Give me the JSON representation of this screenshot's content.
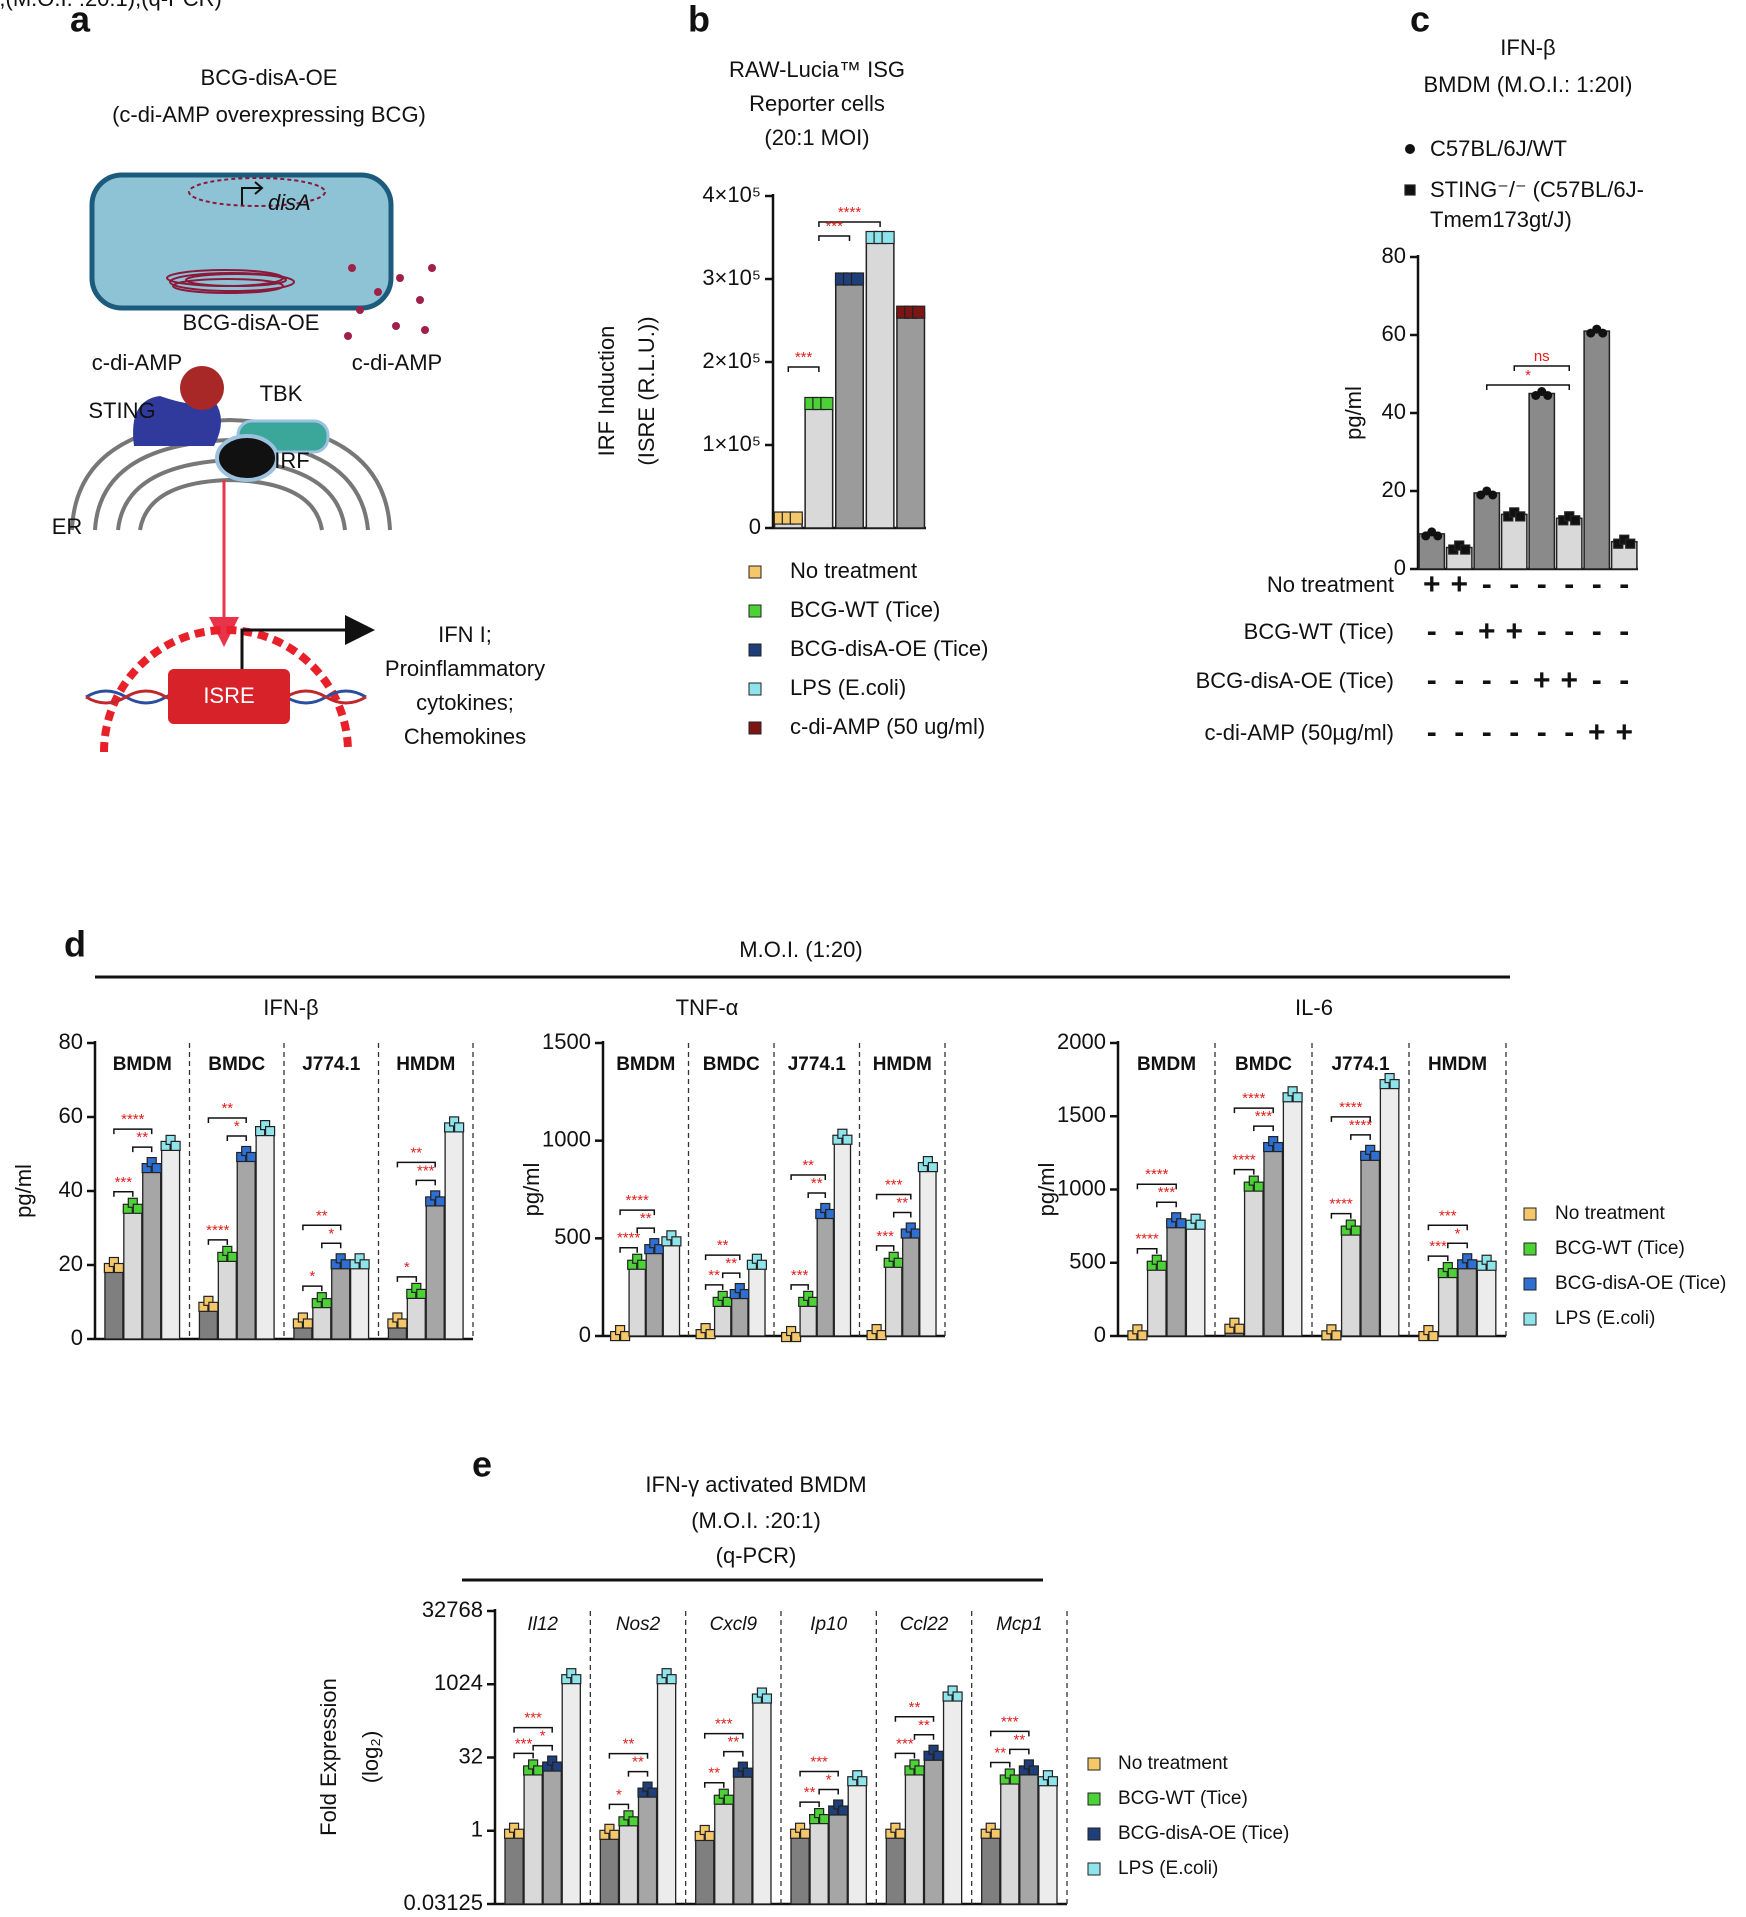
{
  "panel_labels": [
    "a",
    "b",
    "c",
    "d",
    "e"
  ],
  "diagram": {
    "title": [
      "BCG-disA-OE",
      "(c-di-AMP overexpressing BCG)"
    ],
    "plasmid_gene": "disA",
    "cell_label": "BCG-disA-OE",
    "ligand_labels": [
      "c-di-AMP",
      "c-di-AMP"
    ],
    "proteins": [
      "STING",
      "TBK",
      "IRF"
    ],
    "organelle": "ER",
    "promoter": "ISRE",
    "outputs": [
      "IFN I;",
      "Proinflammatory",
      "cytokines;",
      "Chemokines"
    ]
  },
  "chart_data": [
    {
      "type": "bar",
      "title": [
        "RAW-Lucia™ ISG",
        "Reporter cells",
        "(20:1 MOI)"
      ],
      "ylabel": [
        "IRF Induction",
        "(ISRE (R.L.U.))"
      ],
      "categories": [
        "No treatment",
        "BCG-WT (Tice)",
        "BCG-disA-OE (Tice)",
        "LPS (E.coli)",
        "c-di-AMP (50 ug/ml)"
      ],
      "values": [
        12000,
        150000,
        300000,
        350000,
        260000
      ],
      "bar_colors": [
        "#d9d9d9",
        "#d9d9d9",
        "#9b9b9b",
        "#d9d9d9",
        "#9b9b9b"
      ],
      "point_colors": [
        "#f5c76b",
        "#4cd137",
        "#1e3f7a",
        "#8fe3ea",
        "#7d1515"
      ],
      "ylim": [
        0,
        400000
      ],
      "yticks": [
        0,
        {
          "value": 100000,
          "label": "1×10⁵"
        },
        {
          "value": 200000,
          "label": "2×10⁵"
        },
        {
          "value": 300000,
          "label": "3×10⁵"
        },
        {
          "value": 400000,
          "label": "4×10⁵"
        }
      ],
      "significance": [
        "***",
        "****",
        "***"
      ]
    },
    {
      "type": "bar",
      "title": [
        "IFN-β",
        "BMDM (M.O.I.: 1:20I)"
      ],
      "ylabel": "pg/ml",
      "series": [
        {
          "name": "C57BL/6J/WT",
          "marker": "circle",
          "bar_color": "#8a8a8a",
          "values": [
            9,
            19.5,
            45,
            61
          ]
        },
        {
          "name": "STING⁻/⁻ (C57BL/6J-Tmem173gt/J)",
          "marker": "square",
          "bar_color": "#d9d9d9",
          "values": [
            5.5,
            14,
            13,
            7
          ]
        }
      ],
      "ylim": [
        0,
        80
      ],
      "yticks": [
        0,
        20,
        40,
        60,
        80
      ],
      "significance": [
        "*",
        "ns"
      ],
      "conditions": [
        {
          "label": "No treatment",
          "signs": [
            "+",
            "+",
            "-",
            "-",
            "-",
            "-",
            "-",
            "-"
          ]
        },
        {
          "label": "BCG-WT (Tice)",
          "signs": [
            "-",
            "-",
            "+",
            "+",
            "-",
            "-",
            "-",
            "-"
          ]
        },
        {
          "label": "BCG-disA-OE (Tice)",
          "signs": [
            "-",
            "-",
            "-",
            "-",
            "+",
            "+",
            "-",
            "-"
          ]
        },
        {
          "label": "c-di-AMP (50µg/ml)",
          "signs": [
            "-",
            "-",
            "-",
            "-",
            "-",
            "-",
            "+",
            "+"
          ]
        }
      ]
    },
    {
      "type": "grouped-bar",
      "title": "M.O.I. (1:20)",
      "ylabel": "pg/ml",
      "series": [
        {
          "name": "No treatment",
          "color": "#f5c76b",
          "bar_color": "#7f7f7f"
        },
        {
          "name": "BCG-WT (Tice)",
          "color": "#4cd137",
          "bar_color": "#d9d9d9"
        },
        {
          "name": "BCG-disA-OE (Tice)",
          "color": "#2f6fd1",
          "bar_color": "#a6a6a6"
        },
        {
          "name": "LPS (E.coli)",
          "color": "#8fe3ea",
          "bar_color": "#ececec"
        }
      ],
      "subplots": [
        {
          "title": "IFN-β",
          "categories": [
            "BMDM",
            "BMDC",
            "J774.1",
            "HMDM"
          ],
          "values": [
            [
              20,
              36,
              47,
              53
            ],
            [
              9.5,
              23,
              50,
              57
            ],
            [
              5,
              10.5,
              21,
              21
            ],
            [
              5,
              13,
              38,
              58
            ]
          ],
          "significance": [
            [
              "***",
              "****",
              "**"
            ],
            [
              "****",
              "**",
              "*"
            ],
            [
              "*",
              "**",
              "*"
            ],
            [
              "*",
              "**",
              "***"
            ]
          ],
          "ylim": [
            0,
            80
          ],
          "yticks": [
            0,
            20,
            40,
            60,
            80
          ]
        },
        {
          "title": "TNF-α",
          "categories": [
            "BMDM",
            "BMDC",
            "J774.1",
            "HMDM"
          ],
          "values": [
            [
              15,
              380,
              460,
              500
            ],
            [
              25,
              190,
              230,
              380
            ],
            [
              10,
              190,
              640,
              1020
            ],
            [
              20,
              390,
              540,
              880
            ]
          ],
          "significance": [
            [
              "****",
              "****",
              "**"
            ],
            [
              "**",
              "**",
              "**"
            ],
            [
              "***",
              "**",
              "**"
            ],
            [
              "***",
              "***",
              "**"
            ]
          ],
          "ylim": [
            0,
            1500
          ],
          "yticks": [
            0,
            500,
            1000,
            1500
          ]
        },
        {
          "title": "IL-6",
          "categories": [
            "BMDM",
            "BMDC",
            "J774.1",
            "HMDM"
          ],
          "values": [
            [
              25,
              500,
              790,
              780
            ],
            [
              70,
              1040,
              1310,
              1650
            ],
            [
              25,
              740,
              1250,
              1740
            ],
            [
              20,
              450,
              510,
              500
            ]
          ],
          "significance": [
            [
              "****",
              "****",
              "***"
            ],
            [
              "****",
              "****",
              "***"
            ],
            [
              "****",
              "****",
              "****"
            ],
            [
              "***",
              "***",
              "*"
            ]
          ],
          "ylim": [
            0,
            2000
          ],
          "yticks": [
            0,
            500,
            1000,
            1500,
            2000
          ]
        }
      ]
    },
    {
      "type": "grouped-bar",
      "title": [
        "IFN-γ activated BMDM",
        "(M.O.I. :20:1)",
        "(q-PCR)"
      ],
      "ylabel": [
        "Fold Expression",
        "(log₂)"
      ],
      "log_scale": true,
      "log_base": 2,
      "series": [
        {
          "name": "No treatment",
          "color": "#f5c76b",
          "bar_color": "#7f7f7f"
        },
        {
          "name": "BCG-WT (Tice)",
          "color": "#4cd137",
          "bar_color": "#d9d9d9"
        },
        {
          "name": "BCG-disA-OE (Tice)",
          "color": "#1e3f7a",
          "bar_color": "#a6a6a6"
        },
        {
          "name": "LPS (E.coli)",
          "color": "#8fe3ea",
          "bar_color": "#ececec"
        }
      ],
      "categories": [
        "Il12",
        "Nos2",
        "Cxcl9",
        "Ip10",
        "Ccl22",
        "Mcp1"
      ],
      "values": [
        [
          1,
          20,
          24,
          1500
        ],
        [
          0.95,
          1.8,
          7,
          1500
        ],
        [
          0.9,
          5,
          18,
          600
        ],
        [
          1,
          2,
          3,
          12
        ],
        [
          1,
          20,
          40,
          660
        ],
        [
          1,
          13,
          20,
          12
        ]
      ],
      "significance": [
        [
          "***",
          "***",
          "*"
        ],
        [
          "*",
          "**",
          "**"
        ],
        [
          "**",
          "***",
          "**"
        ],
        [
          "**",
          "***",
          "*"
        ],
        [
          "***",
          "**",
          "**"
        ],
        [
          "**",
          "***",
          "**"
        ]
      ],
      "ylim": [
        0.03125,
        32768
      ],
      "yticks": [
        0.03125,
        1,
        32,
        1024,
        32768
      ]
    }
  ]
}
